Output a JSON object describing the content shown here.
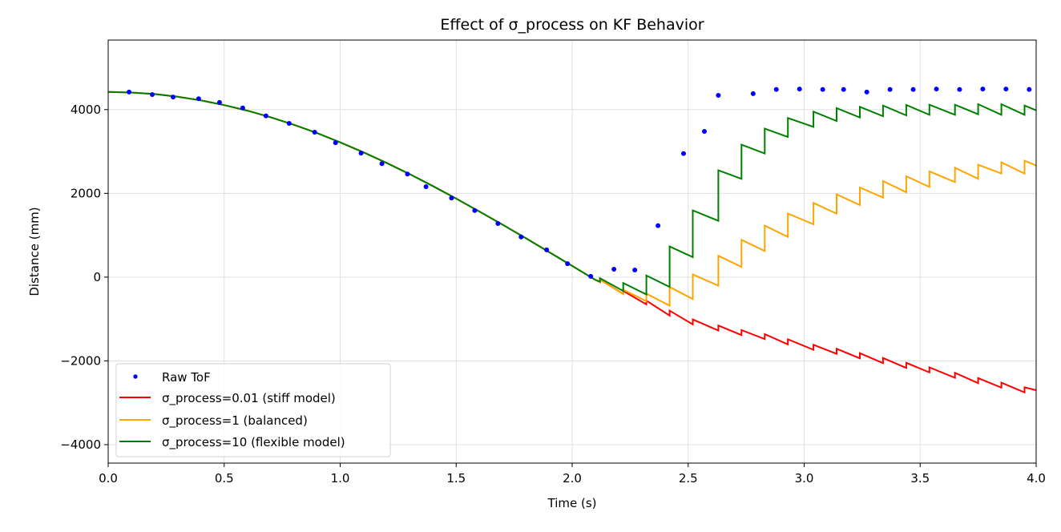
{
  "chart_data": {
    "type": "line",
    "title": "Effect of σ_process on KF Behavior",
    "xlabel": "Time (s)",
    "ylabel": "Distance (mm)",
    "xlim": [
      0,
      4.0
    ],
    "ylim": [
      -4440,
      5660
    ],
    "xticks": [
      0,
      0.5,
      1.0,
      1.5,
      2.0,
      2.5,
      3.0,
      3.5,
      4.0
    ],
    "xtick_labels": [
      "0.0",
      "0.5",
      "1.0",
      "1.5",
      "2.0",
      "2.5",
      "3.0",
      "3.5",
      "4.0"
    ],
    "yticks": [
      -4000,
      -2000,
      0,
      2000,
      4000
    ],
    "ytick_labels": [
      "−4000",
      "−2000",
      "0",
      "2000",
      "4000"
    ],
    "grid": true,
    "legend_position": "lower-left",
    "raw": {
      "name": "Raw ToF",
      "color": "#0000ff",
      "x": [
        0.09,
        0.19,
        0.28,
        0.39,
        0.48,
        0.58,
        0.68,
        0.78,
        0.89,
        0.98,
        1.09,
        1.18,
        1.29,
        1.37,
        1.48,
        1.58,
        1.68,
        1.78,
        1.89,
        1.98,
        2.08,
        2.18,
        2.27,
        2.37,
        2.48,
        2.57,
        2.63,
        2.78,
        2.88,
        2.98,
        3.08,
        3.17,
        3.27,
        3.37,
        3.47,
        3.57,
        3.67,
        3.77,
        3.87,
        3.97
      ],
      "y": [
        4420,
        4360,
        4300,
        4260,
        4170,
        4040,
        3850,
        3670,
        3460,
        3210,
        2960,
        2710,
        2460,
        2160,
        1890,
        1590,
        1280,
        960,
        650,
        320,
        20,
        190,
        170,
        1230,
        2950,
        3480,
        4340,
        4380,
        4480,
        4490,
        4480,
        4480,
        4420,
        4480,
        4480,
        4490,
        4480,
        4490,
        4490,
        4480
      ]
    },
    "series": [
      {
        "name": "σ_process=0.01 (stiff model)",
        "color": "#ff0000",
        "points": [
          [
            0,
            4420
          ],
          [
            0.1,
            4407
          ],
          [
            0.2,
            4370
          ],
          [
            0.3,
            4307
          ],
          [
            0.4,
            4220
          ],
          [
            0.5,
            4107
          ],
          [
            0.6,
            3974
          ],
          [
            0.7,
            3817
          ],
          [
            0.8,
            3638
          ],
          [
            0.9,
            3439
          ],
          [
            1.0,
            3217
          ],
          [
            1.1,
            2981
          ],
          [
            1.2,
            2728
          ],
          [
            1.3,
            2457
          ],
          [
            1.4,
            2172
          ],
          [
            1.5,
            1875
          ],
          [
            1.6,
            1566
          ],
          [
            1.7,
            1252
          ],
          [
            1.8,
            930
          ],
          [
            1.9,
            600
          ],
          [
            2.0,
            268
          ],
          [
            2.1,
            -65
          ],
          [
            2.12,
            -120
          ],
          [
            2.12,
            -60
          ],
          [
            2.22,
            -400
          ],
          [
            2.22,
            -330
          ],
          [
            2.32,
            -650
          ],
          [
            2.32,
            -560
          ],
          [
            2.42,
            -918
          ],
          [
            2.42,
            -800
          ],
          [
            2.52,
            -1128
          ],
          [
            2.52,
            -1010
          ],
          [
            2.63,
            -1275
          ],
          [
            2.63,
            -1155
          ],
          [
            2.73,
            -1383
          ],
          [
            2.73,
            -1265
          ],
          [
            2.83,
            -1479
          ],
          [
            2.83,
            -1360
          ],
          [
            2.93,
            -1606
          ],
          [
            2.93,
            -1485
          ],
          [
            3.04,
            -1734
          ],
          [
            3.04,
            -1615
          ],
          [
            3.14,
            -1830
          ],
          [
            3.14,
            -1710
          ],
          [
            3.24,
            -1937
          ],
          [
            3.24,
            -1815
          ],
          [
            3.34,
            -2052
          ],
          [
            3.34,
            -1930
          ],
          [
            3.44,
            -2167
          ],
          [
            3.44,
            -2045
          ],
          [
            3.54,
            -2275
          ],
          [
            3.54,
            -2155
          ],
          [
            3.65,
            -2403
          ],
          [
            3.65,
            -2285
          ],
          [
            3.75,
            -2530
          ],
          [
            3.75,
            -2410
          ],
          [
            3.85,
            -2639
          ],
          [
            3.85,
            -2520
          ],
          [
            3.95,
            -2753
          ],
          [
            3.95,
            -2630
          ],
          [
            4.0,
            -2700
          ]
        ]
      },
      {
        "name": "σ_process=1 (balanced)",
        "color": "#ffa500",
        "points": [
          [
            0,
            4420
          ],
          [
            0.1,
            4407
          ],
          [
            0.2,
            4370
          ],
          [
            0.3,
            4307
          ],
          [
            0.4,
            4220
          ],
          [
            0.5,
            4107
          ],
          [
            0.6,
            3974
          ],
          [
            0.7,
            3817
          ],
          [
            0.8,
            3638
          ],
          [
            0.9,
            3439
          ],
          [
            1.0,
            3217
          ],
          [
            1.1,
            2981
          ],
          [
            1.2,
            2728
          ],
          [
            1.3,
            2457
          ],
          [
            1.4,
            2172
          ],
          [
            1.5,
            1875
          ],
          [
            1.6,
            1566
          ],
          [
            1.7,
            1252
          ],
          [
            1.8,
            930
          ],
          [
            1.9,
            600
          ],
          [
            2.0,
            268
          ],
          [
            2.1,
            -65
          ],
          [
            2.12,
            -120
          ],
          [
            2.12,
            -60
          ],
          [
            2.22,
            -400
          ],
          [
            2.22,
            -300
          ],
          [
            2.32,
            -574
          ],
          [
            2.32,
            -395
          ],
          [
            2.42,
            -682
          ],
          [
            2.42,
            -236
          ],
          [
            2.52,
            -523
          ],
          [
            2.52,
            64
          ],
          [
            2.63,
            -204
          ],
          [
            2.63,
            510
          ],
          [
            2.73,
            242
          ],
          [
            2.73,
            892
          ],
          [
            2.83,
            624
          ],
          [
            2.83,
            1230
          ],
          [
            2.93,
            962
          ],
          [
            2.93,
            1517
          ],
          [
            3.04,
            1262
          ],
          [
            3.04,
            1772
          ],
          [
            3.14,
            1517
          ],
          [
            3.14,
            1976
          ],
          [
            3.24,
            1721
          ],
          [
            3.24,
            2141
          ],
          [
            3.34,
            1899
          ],
          [
            3.34,
            2294
          ],
          [
            3.44,
            2027
          ],
          [
            3.44,
            2409
          ],
          [
            3.54,
            2154
          ],
          [
            3.54,
            2524
          ],
          [
            3.65,
            2269
          ],
          [
            3.65,
            2613
          ],
          [
            3.75,
            2346
          ],
          [
            3.75,
            2683
          ],
          [
            3.85,
            2473
          ],
          [
            3.85,
            2741
          ],
          [
            3.95,
            2473
          ],
          [
            3.95,
            2779
          ],
          [
            4.0,
            2664
          ]
        ]
      },
      {
        "name": "σ_process=10 (flexible model)",
        "color": "#008000",
        "points": [
          [
            0,
            4420
          ],
          [
            0.1,
            4407
          ],
          [
            0.2,
            4370
          ],
          [
            0.3,
            4307
          ],
          [
            0.4,
            4220
          ],
          [
            0.5,
            4107
          ],
          [
            0.6,
            3974
          ],
          [
            0.7,
            3817
          ],
          [
            0.8,
            3638
          ],
          [
            0.9,
            3439
          ],
          [
            1.0,
            3217
          ],
          [
            1.1,
            2981
          ],
          [
            1.2,
            2728
          ],
          [
            1.3,
            2457
          ],
          [
            1.4,
            2172
          ],
          [
            1.5,
            1875
          ],
          [
            1.6,
            1566
          ],
          [
            1.7,
            1252
          ],
          [
            1.8,
            930
          ],
          [
            1.9,
            600
          ],
          [
            2.0,
            268
          ],
          [
            2.1,
            -65
          ],
          [
            2.12,
            -108
          ],
          [
            2.12,
            -25
          ],
          [
            2.22,
            -331
          ],
          [
            2.22,
            -140
          ],
          [
            2.32,
            -414
          ],
          [
            2.32,
            38
          ],
          [
            2.42,
            -236
          ],
          [
            2.42,
            733
          ],
          [
            2.52,
            478
          ],
          [
            2.52,
            1593
          ],
          [
            2.63,
            1345
          ],
          [
            2.63,
            2549
          ],
          [
            2.73,
            2346
          ],
          [
            2.73,
            3161
          ],
          [
            2.83,
            2951
          ],
          [
            2.83,
            3544
          ],
          [
            2.93,
            3346
          ],
          [
            2.93,
            3799
          ],
          [
            3.04,
            3588
          ],
          [
            3.04,
            3952
          ],
          [
            3.14,
            3728
          ],
          [
            3.14,
            4034
          ],
          [
            3.24,
            3811
          ],
          [
            3.24,
            4066
          ],
          [
            3.34,
            3843
          ],
          [
            3.34,
            4098
          ],
          [
            3.44,
            3862
          ],
          [
            3.44,
            4111
          ],
          [
            3.54,
            3875
          ],
          [
            3.54,
            4117
          ],
          [
            3.65,
            3875
          ],
          [
            3.65,
            4117
          ],
          [
            3.75,
            3888
          ],
          [
            3.75,
            4130
          ],
          [
            3.85,
            3875
          ],
          [
            3.85,
            4130
          ],
          [
            3.95,
            3875
          ],
          [
            3.95,
            4098
          ],
          [
            4.0,
            3983
          ]
        ]
      }
    ]
  }
}
